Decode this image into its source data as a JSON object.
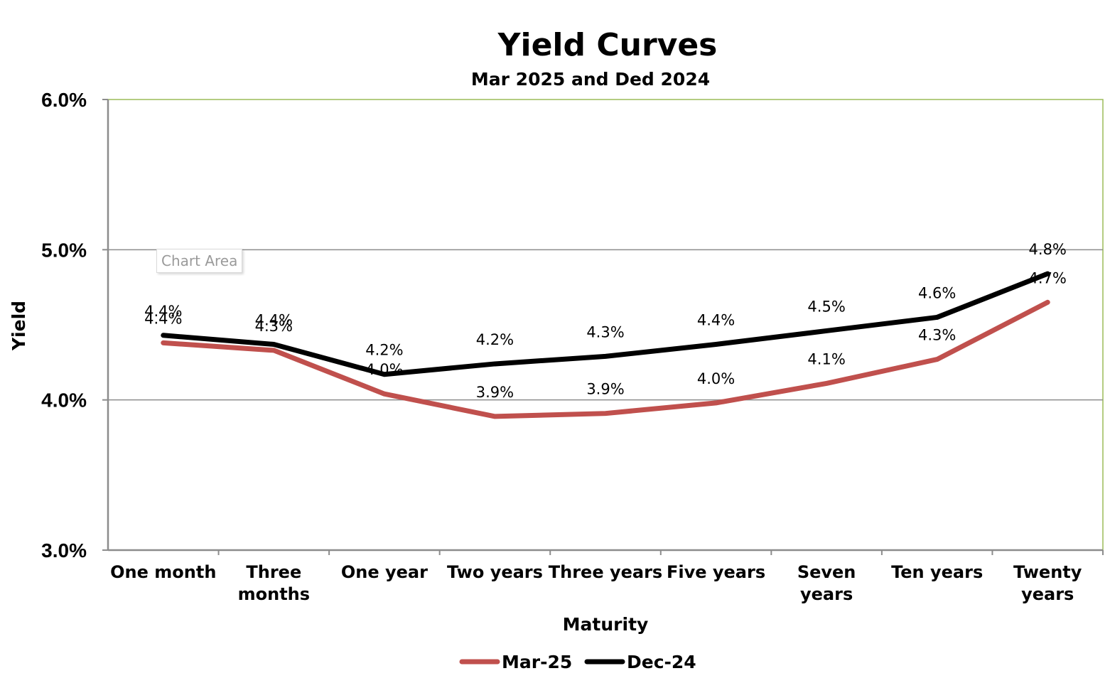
{
  "chart_data": {
    "type": "line",
    "title": "Yield Curves",
    "subtitle": "Mar 2025 and Ded 2024",
    "xlabel": "Maturity",
    "ylabel": "Yield",
    "ylim": [
      3.0,
      6.0
    ],
    "yticks": [
      "3.0%",
      "4.0%",
      "5.0%",
      "6.0%"
    ],
    "categories": [
      "One month",
      "Three months",
      "One year",
      "Two years",
      "Three years",
      "Five years",
      "Seven years",
      "Ten years",
      "Twenty years"
    ],
    "category_lines": [
      [
        "One month"
      ],
      [
        "Three",
        "months"
      ],
      [
        "One year"
      ],
      [
        "Two years"
      ],
      [
        "Three years"
      ],
      [
        "Five years"
      ],
      [
        "Seven",
        "years"
      ],
      [
        "Ten years"
      ],
      [
        "Twenty",
        "years"
      ]
    ],
    "series": [
      {
        "name": "Mar-25",
        "color": "#c0504d",
        "values": [
          4.38,
          4.33,
          4.04,
          3.89,
          3.91,
          3.98,
          4.11,
          4.27,
          4.65
        ],
        "labels": [
          "4.4%",
          "4.3%",
          "4.0%",
          "3.9%",
          "3.9%",
          "4.0%",
          "4.1%",
          "4.3%",
          "4.7%"
        ]
      },
      {
        "name": "Dec-24",
        "color": "#000000",
        "values": [
          4.43,
          4.37,
          4.17,
          4.24,
          4.29,
          4.37,
          4.46,
          4.55,
          4.84
        ],
        "labels": [
          "4.4%",
          "4.4%",
          "4.2%",
          "4.2%",
          "4.3%",
          "4.4%",
          "4.5%",
          "4.6%",
          "4.8%"
        ]
      }
    ],
    "grid": true,
    "legend": "bottom"
  },
  "tooltip": "Chart Area"
}
